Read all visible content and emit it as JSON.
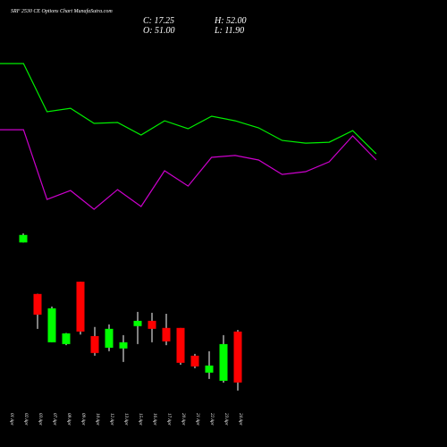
{
  "chart_data": {
    "type": "candlestick",
    "title": "SRF 2530  CE Options Chart MunafaSutra.com",
    "info": [
      "C: 17.25",
      "H: 52.00",
      "O: 51.00",
      "L: 11.90"
    ],
    "categories": [
      "01 Apr",
      "02 Apr",
      "03 Apr",
      "07 Apr",
      "08 Apr",
      "09 Apr",
      "10 Apr",
      "12 Apr",
      "13 Apr",
      "15 Apr",
      "16 Apr",
      "17 Apr",
      "20 Apr",
      "21 Apr",
      "22 Apr",
      "23 Apr",
      "24 Apr"
    ],
    "open": [
      null,
      110,
      75.9,
      43.9,
      42.7,
      84,
      48,
      40.3,
      39.8,
      54.6,
      58.1,
      53.4,
      53.4,
      35,
      23.8,
      18.4,
      51
    ],
    "high": [
      null,
      116,
      76,
      67.6,
      50,
      84,
      54,
      55.7,
      48.6,
      64,
      63.4,
      62.8,
      53.4,
      36.2,
      38,
      48.6,
      52
    ],
    "low": [
      null,
      110,
      52.8,
      44,
      42,
      49,
      35,
      38,
      30.9,
      42.7,
      43.9,
      42,
      29,
      26.7,
      19.6,
      17.2,
      11.9
    ],
    "close": [
      null,
      115,
      62.2,
      66.4,
      49.8,
      51,
      36.8,
      52.8,
      43.9,
      58.1,
      52.8,
      44.5,
      30.3,
      27.9,
      28.5,
      42.7,
      17.25
    ],
    "up_color": "#00ff00",
    "down_color": "#ff0000",
    "lines": [
      {
        "color": "#00ee00",
        "values": [
          228.5,
          228.5,
          196.6,
          198.9,
          188.9,
          189.5,
          181.2,
          190.6,
          185.3,
          193.6,
          190.6,
          185.9,
          177.6,
          175.8,
          176.4,
          184.1,
          168.7
        ]
      },
      {
        "color": "#cc00cc",
        "values": [
          184.7,
          184.7,
          138.5,
          144.4,
          132,
          145,
          133.8,
          157.5,
          147.4,
          166.4,
          167.6,
          164.6,
          155.1,
          156.9,
          163.4,
          180.6,
          164.6
        ]
      }
    ],
    "ylim": [
      0,
      270
    ]
  }
}
